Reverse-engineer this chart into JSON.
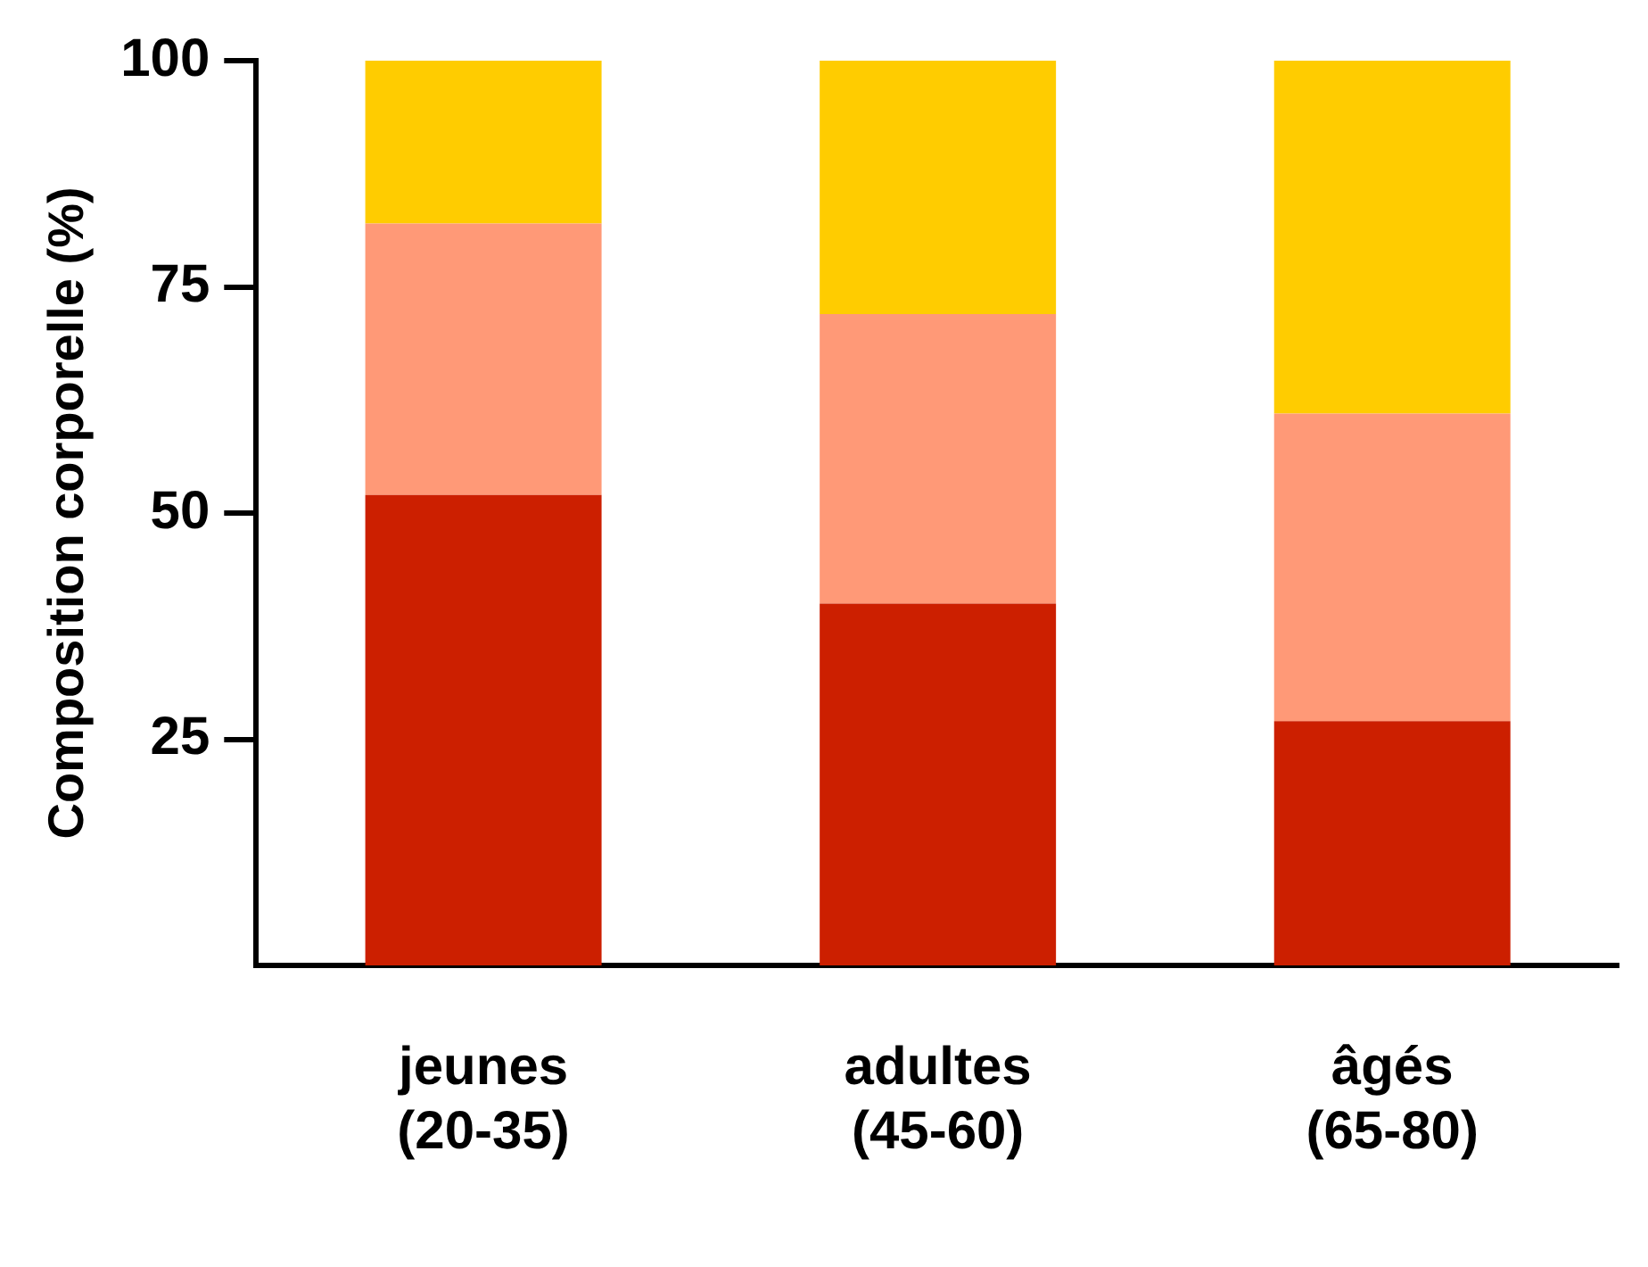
{
  "chart_data": {
    "type": "bar",
    "ylabel": "Composition corporelle (%)",
    "categories": [
      "jeunes\n(20-35)",
      "adultes\n(45-60)",
      "âgés\n(65-80)"
    ],
    "series": [
      {
        "color": "#cc1f00",
        "values": [
          52,
          40,
          27
        ]
      },
      {
        "color": "#ff9977",
        "values": [
          30,
          32,
          34
        ]
      },
      {
        "color": "#ffcc00",
        "values": [
          18,
          28,
          39
        ]
      }
    ],
    "stacked": true,
    "ylim": [
      0,
      100
    ],
    "yticks": [
      25,
      50,
      75,
      100
    ],
    "grid": false,
    "legend": false
  }
}
